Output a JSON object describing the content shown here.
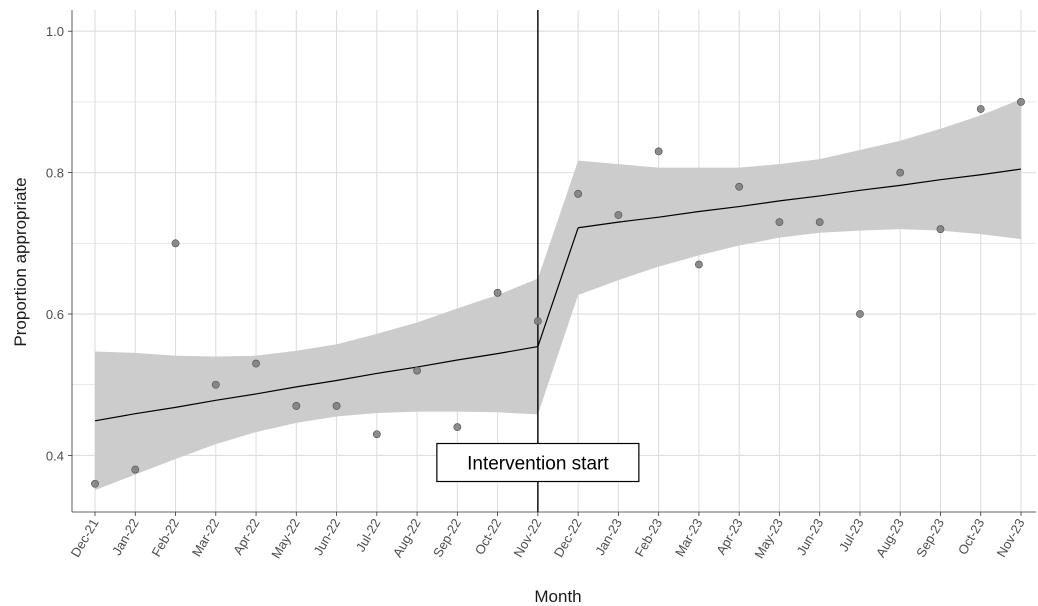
{
  "chart_data": {
    "type": "scatter",
    "title": "",
    "xlabel": "Month",
    "ylabel": "Proportion appropriate",
    "categories": [
      "Dec-21",
      "Jan-22",
      "Feb-22",
      "Mar-22",
      "Apr-22",
      "May-22",
      "Jun-22",
      "Jul-22",
      "Aug-22",
      "Sep-22",
      "Oct-22",
      "Nov-22",
      "Dec-22",
      "Jan-23",
      "Feb-23",
      "Mar-23",
      "Apr-23",
      "May-23",
      "Jun-23",
      "Jul-23",
      "Aug-23",
      "Sep-23",
      "Oct-23",
      "Nov-23"
    ],
    "values": [
      0.36,
      0.38,
      0.7,
      0.5,
      0.53,
      0.47,
      0.47,
      0.43,
      0.52,
      0.44,
      0.63,
      0.59,
      0.77,
      0.74,
      0.83,
      0.67,
      0.78,
      0.73,
      0.73,
      0.6,
      0.8,
      0.72,
      0.89,
      0.9
    ],
    "ylim": [
      0.32,
      1.03
    ],
    "yticks": [
      0.4,
      0.6,
      0.8,
      1.0
    ],
    "ytick_labels": [
      "0.4",
      "0.6",
      "0.8",
      "1.0"
    ],
    "grid": true,
    "fit_segments": [
      {
        "x": [
          "Dec-21",
          "Jan-22",
          "Feb-22",
          "Mar-22",
          "Apr-22",
          "May-22",
          "Jun-22",
          "Jul-22",
          "Aug-22",
          "Sep-22",
          "Oct-22",
          "Nov-22"
        ],
        "fit": [
          0.449,
          0.459,
          0.468,
          0.478,
          0.487,
          0.497,
          0.506,
          0.516,
          0.525,
          0.535,
          0.544,
          0.554
        ],
        "lower": [
          0.351,
          0.373,
          0.395,
          0.416,
          0.433,
          0.446,
          0.455,
          0.46,
          0.462,
          0.462,
          0.461,
          0.458
        ],
        "upper": [
          0.547,
          0.545,
          0.541,
          0.54,
          0.541,
          0.548,
          0.557,
          0.572,
          0.588,
          0.608,
          0.627,
          0.65
        ]
      },
      {
        "x": [
          "Dec-22",
          "Jan-23",
          "Feb-23",
          "Mar-23",
          "Apr-23",
          "May-23",
          "Jun-23",
          "Jul-23",
          "Aug-23",
          "Sep-23",
          "Oct-23",
          "Nov-23"
        ],
        "fit": [
          0.722,
          0.73,
          0.737,
          0.745,
          0.752,
          0.76,
          0.767,
          0.775,
          0.782,
          0.79,
          0.797,
          0.805
        ],
        "lower": [
          0.627,
          0.648,
          0.667,
          0.683,
          0.697,
          0.708,
          0.715,
          0.718,
          0.72,
          0.718,
          0.713,
          0.706
        ],
        "upper": [
          0.817,
          0.812,
          0.807,
          0.807,
          0.807,
          0.812,
          0.819,
          0.832,
          0.845,
          0.862,
          0.881,
          0.904
        ]
      }
    ],
    "intervention": {
      "x": "Nov-22",
      "label": "Intervention start",
      "label_y": 0.39
    },
    "colors": {
      "points": "#808080",
      "point_stroke": "#4d4d4d",
      "ribbon": "#cccccc",
      "line": "#000000",
      "grid": "#dedede",
      "axis": "#333333"
    }
  }
}
